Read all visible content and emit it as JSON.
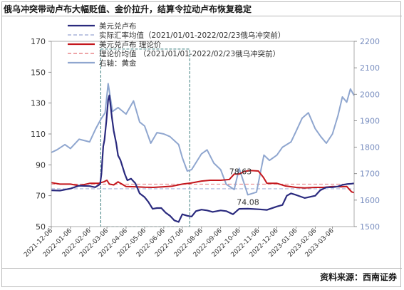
{
  "page": {
    "title": "俄乌冲突带动卢布大幅贬值、金价拉升，结算令拉动卢布恢复稳定",
    "source": "资料来源：西南证券"
  },
  "colors": {
    "usd_rub": "#2a2a7e",
    "usd_rub_theoretical": "#c4161c",
    "gold": "#8fa6cf",
    "actual_avg_line": "#a9b4da",
    "theoretical_avg_line": "#e8878b",
    "axis_text": "#333333",
    "right_axis_text": "#7a8fc0",
    "highlight_box": "#3a7d7d"
  },
  "chart_data": {
    "type": "line",
    "x_ticks": [
      "2021-12-06",
      "2022-01-06",
      "2022-02-06",
      "2022-03-06",
      "2022-04-06",
      "2022-05-06",
      "2022-06-06",
      "2022-07-06",
      "2022-08-06",
      "2022-09-06",
      "2022-10-06",
      "2022-11-06",
      "2022-12-06",
      "2023-01-06",
      "2023-02-06",
      "2023-03-06"
    ],
    "x_range": [
      "2021-12-06",
      "2023-04-10"
    ],
    "y_left": {
      "ticks": [
        50,
        70,
        90,
        110,
        130,
        150,
        170
      ],
      "range": [
        50,
        170
      ]
    },
    "y_right": {
      "ticks": [
        1500,
        1600,
        1700,
        1800,
        1900,
        2000,
        2100,
        2200
      ],
      "range": [
        1500,
        2200
      ]
    },
    "legend": {
      "position": "top",
      "entries": [
        "美元兑卢布",
        "实际汇率均值（2021/01/01-2022/02/23俄乌冲突前）",
        "美元兑卢布  理论价",
        "理论价均值  （2021/01/01-2022/02/23俄乌冲突前）",
        "右轴：黄金"
      ]
    },
    "reference_lines": [
      {
        "name_ref": 1,
        "axis": "left",
        "value": 74.5,
        "style": "dashed"
      },
      {
        "name_ref": 3,
        "axis": "left",
        "value": 77.5,
        "style": "dashed"
      }
    ],
    "highlight_box": {
      "x_start": "2022-02-24",
      "x_end": "2022-07-18",
      "y_range": [
        50,
        165
      ]
    },
    "annotations": [
      {
        "text": "78.63",
        "x": "2022-09-20",
        "y": 84
      },
      {
        "text": "74.08",
        "x": "2022-10-02",
        "y": 64
      }
    ],
    "series": [
      {
        "key": "usd_rub",
        "axis": "left",
        "style": "solid",
        "points": [
          [
            "2021-12-06",
            73.5
          ],
          [
            "2021-12-20",
            73.3
          ],
          [
            "2022-01-06",
            74.6
          ],
          [
            "2022-01-20",
            76.5
          ],
          [
            "2022-02-06",
            76.2
          ],
          [
            "2022-02-15",
            75.5
          ],
          [
            "2022-02-23",
            77.5
          ],
          [
            "2022-02-25",
            84
          ],
          [
            "2022-02-28",
            102
          ],
          [
            "2022-03-02",
            106
          ],
          [
            "2022-03-05",
            118
          ],
          [
            "2022-03-08",
            132
          ],
          [
            "2022-03-10",
            135
          ],
          [
            "2022-03-14",
            121
          ],
          [
            "2022-03-17",
            112
          ],
          [
            "2022-03-21",
            104
          ],
          [
            "2022-03-24",
            96
          ],
          [
            "2022-03-28",
            93
          ],
          [
            "2022-04-04",
            84
          ],
          [
            "2022-04-08",
            80
          ],
          [
            "2022-04-14",
            81
          ],
          [
            "2022-04-21",
            78
          ],
          [
            "2022-04-28",
            71.5
          ],
          [
            "2022-05-06",
            69
          ],
          [
            "2022-05-12",
            66
          ],
          [
            "2022-05-19",
            61.5
          ],
          [
            "2022-05-26",
            62
          ],
          [
            "2022-06-02",
            62
          ],
          [
            "2022-06-09",
            59
          ],
          [
            "2022-06-16",
            57
          ],
          [
            "2022-06-23",
            54
          ],
          [
            "2022-06-30",
            53
          ],
          [
            "2022-07-06",
            58
          ],
          [
            "2022-07-14",
            57
          ],
          [
            "2022-07-21",
            56.5
          ],
          [
            "2022-07-28",
            60
          ],
          [
            "2022-08-06",
            61
          ],
          [
            "2022-08-15",
            60.5
          ],
          [
            "2022-08-24",
            59.5
          ],
          [
            "2022-09-06",
            60.5
          ],
          [
            "2022-09-15",
            60
          ],
          [
            "2022-09-26",
            58
          ],
          [
            "2022-10-06",
            61.5
          ],
          [
            "2022-10-20",
            61.6
          ],
          [
            "2022-11-06",
            61.2
          ],
          [
            "2022-11-20",
            60.8
          ],
          [
            "2022-12-06",
            63
          ],
          [
            "2022-12-15",
            64
          ],
          [
            "2022-12-22",
            70
          ],
          [
            "2022-12-29",
            71.5
          ],
          [
            "2023-01-06",
            70.5
          ],
          [
            "2023-01-20",
            68.5
          ],
          [
            "2023-02-06",
            70
          ],
          [
            "2023-02-14",
            73.5
          ],
          [
            "2023-02-24",
            75.5
          ],
          [
            "2023-03-06",
            75.5
          ],
          [
            "2023-03-15",
            76
          ],
          [
            "2023-03-22",
            77
          ],
          [
            "2023-03-29",
            77.5
          ],
          [
            "2023-04-06",
            77.8
          ],
          [
            "2023-04-10",
            78
          ]
        ]
      },
      {
        "key": "usd_rub_theoretical",
        "axis": "left",
        "style": "solid",
        "points": [
          [
            "2021-12-06",
            78.5
          ],
          [
            "2021-12-20",
            77.5
          ],
          [
            "2022-01-06",
            77.5
          ],
          [
            "2022-01-20",
            76.5
          ],
          [
            "2022-02-06",
            78
          ],
          [
            "2022-02-20",
            78
          ],
          [
            "2022-03-01",
            79
          ],
          [
            "2022-03-06",
            80
          ],
          [
            "2022-03-10",
            77.5
          ],
          [
            "2022-03-17",
            77
          ],
          [
            "2022-03-24",
            79
          ],
          [
            "2022-04-06",
            76
          ],
          [
            "2022-04-20",
            75.8
          ],
          [
            "2022-05-06",
            75.5
          ],
          [
            "2022-05-20",
            75.4
          ],
          [
            "2022-06-06",
            75.8
          ],
          [
            "2022-06-20",
            76.2
          ],
          [
            "2022-07-06",
            77.5
          ],
          [
            "2022-07-20",
            78.2
          ],
          [
            "2022-08-06",
            79.5
          ],
          [
            "2022-08-20",
            80
          ],
          [
            "2022-09-06",
            80
          ],
          [
            "2022-09-20",
            80.5
          ],
          [
            "2022-09-28",
            84
          ],
          [
            "2022-10-06",
            84
          ],
          [
            "2022-10-15",
            85.8
          ],
          [
            "2022-10-25",
            86.3
          ],
          [
            "2022-11-06",
            86
          ],
          [
            "2022-11-14",
            82
          ],
          [
            "2022-11-20",
            78
          ],
          [
            "2022-12-06",
            78
          ],
          [
            "2022-12-20",
            76.3
          ],
          [
            "2023-01-06",
            75.4
          ],
          [
            "2023-01-20",
            75
          ],
          [
            "2023-02-06",
            75.4
          ],
          [
            "2023-02-20",
            75.4
          ],
          [
            "2023-03-06",
            76
          ],
          [
            "2023-03-20",
            75.8
          ],
          [
            "2023-03-29",
            76
          ],
          [
            "2023-04-06",
            72.5
          ],
          [
            "2023-04-10",
            72
          ]
        ]
      },
      {
        "key": "gold",
        "axis": "right",
        "style": "solid",
        "points": [
          [
            "2021-12-06",
            1780
          ],
          [
            "2021-12-15",
            1790
          ],
          [
            "2021-12-28",
            1810
          ],
          [
            "2022-01-06",
            1795
          ],
          [
            "2022-01-20",
            1830
          ],
          [
            "2022-02-06",
            1820
          ],
          [
            "2022-02-16",
            1870
          ],
          [
            "2022-02-24",
            1905
          ],
          [
            "2022-03-03",
            1930
          ],
          [
            "2022-03-08",
            2040
          ],
          [
            "2022-03-15",
            1935
          ],
          [
            "2022-03-24",
            1950
          ],
          [
            "2022-04-06",
            1925
          ],
          [
            "2022-04-18",
            1975
          ],
          [
            "2022-04-28",
            1895
          ],
          [
            "2022-05-06",
            1880
          ],
          [
            "2022-05-16",
            1815
          ],
          [
            "2022-05-26",
            1855
          ],
          [
            "2022-06-06",
            1850
          ],
          [
            "2022-06-16",
            1840
          ],
          [
            "2022-06-30",
            1810
          ],
          [
            "2022-07-06",
            1760
          ],
          [
            "2022-07-14",
            1710
          ],
          [
            "2022-07-21",
            1715
          ],
          [
            "2022-08-06",
            1775
          ],
          [
            "2022-08-15",
            1790
          ],
          [
            "2022-08-26",
            1740
          ],
          [
            "2022-09-06",
            1715
          ],
          [
            "2022-09-15",
            1660
          ],
          [
            "2022-09-28",
            1640
          ],
          [
            "2022-10-06",
            1720
          ],
          [
            "2022-10-20",
            1620
          ],
          [
            "2022-11-03",
            1630
          ],
          [
            "2022-11-15",
            1770
          ],
          [
            "2022-11-24",
            1750
          ],
          [
            "2022-12-06",
            1770
          ],
          [
            "2022-12-15",
            1800
          ],
          [
            "2022-12-29",
            1820
          ],
          [
            "2023-01-06",
            1860
          ],
          [
            "2023-01-16",
            1910
          ],
          [
            "2023-01-26",
            1930
          ],
          [
            "2023-02-06",
            1870
          ],
          [
            "2023-02-15",
            1840
          ],
          [
            "2023-02-24",
            1815
          ],
          [
            "2023-03-06",
            1850
          ],
          [
            "2023-03-15",
            1920
          ],
          [
            "2023-03-22",
            1990
          ],
          [
            "2023-03-29",
            1970
          ],
          [
            "2023-04-04",
            2020
          ],
          [
            "2023-04-10",
            1995
          ]
        ]
      }
    ]
  }
}
